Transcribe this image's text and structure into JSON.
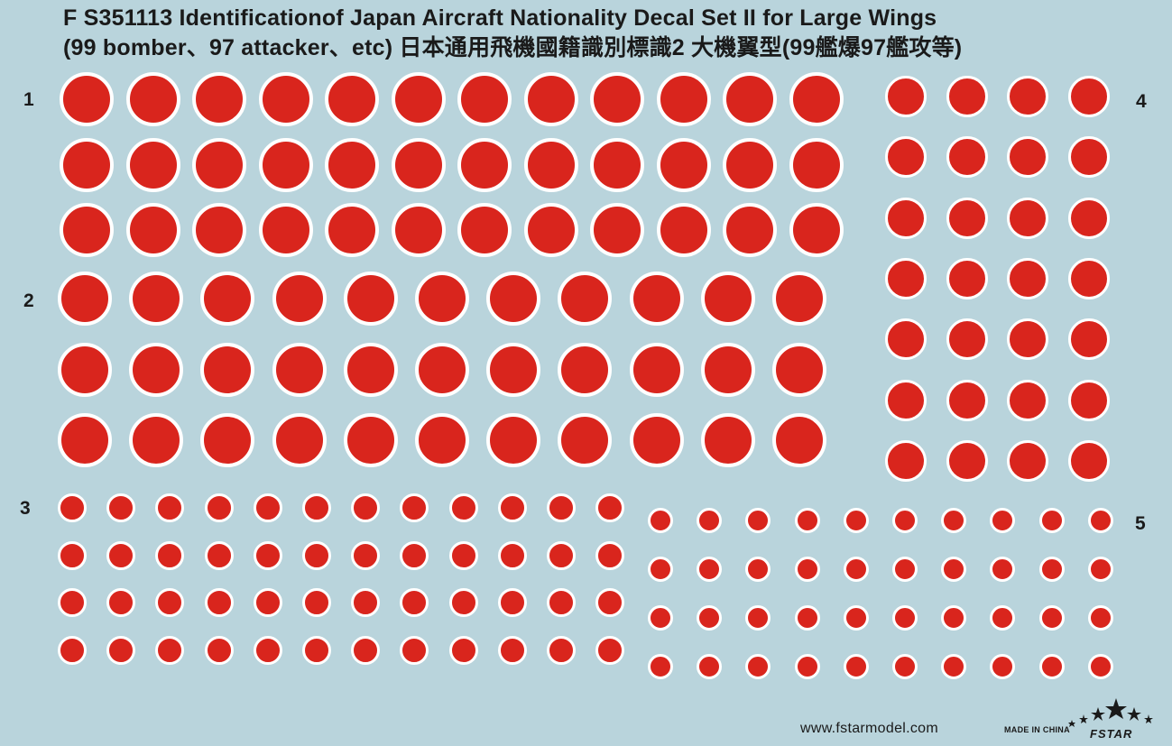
{
  "title": {
    "line1": "F S351113 Identificationof Japan Aircraft Nationality Decal Set II for Large Wings",
    "line2": "(99 bomber、97 attacker、etc) 日本通用飛機國籍識別標識2 大機翼型(99艦爆97艦攻等)"
  },
  "sets": [
    {
      "label": "1",
      "rows": 3,
      "cols": 12
    },
    {
      "label": "2",
      "rows": 3,
      "cols": 11
    },
    {
      "label": "3",
      "rows": 4,
      "cols": 12
    },
    {
      "label": "4",
      "rows": 7,
      "cols": 4
    },
    {
      "label": "5",
      "rows": 4,
      "cols": 10
    }
  ],
  "colors": {
    "background": "#b9d4dc",
    "roundel_red": "#d9251d",
    "roundel_border": "#ffffff",
    "text": "#1a1a1a"
  },
  "footer": {
    "website": "www.fstarmodel.com",
    "made_in": "MADE IN CHINA",
    "brand": "FSTAR"
  }
}
